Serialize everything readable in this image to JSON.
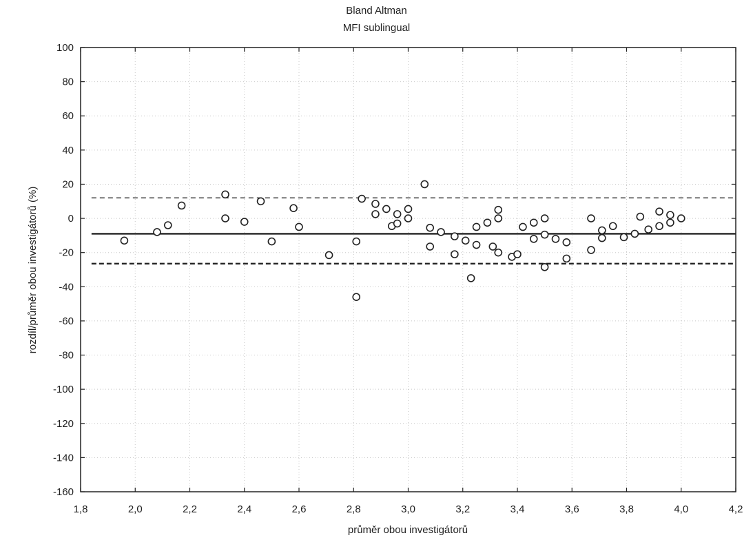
{
  "chart_data": {
    "type": "scatter",
    "title": "Bland Altman",
    "subtitle": "MFI sublingual",
    "xlabel": "průměr obou investigátorů",
    "ylabel": "rozdíl/průměr obou investigátorů (%)",
    "xlim": [
      1.8,
      4.2
    ],
    "ylim": [
      -160,
      100
    ],
    "xticks": [
      1.8,
      2.0,
      2.2,
      2.4,
      2.6,
      2.8,
      3.0,
      3.2,
      3.4,
      3.6,
      3.8,
      4.0,
      4.2
    ],
    "xtick_labels": [
      "1,8",
      "2,0",
      "2,2",
      "2,4",
      "2,6",
      "2,8",
      "3,0",
      "3,2",
      "3,4",
      "3,6",
      "3,8",
      "4,0",
      "4,2"
    ],
    "yticks": [
      -160,
      -140,
      -120,
      -100,
      -80,
      -60,
      -40,
      -20,
      0,
      20,
      40,
      60,
      80,
      100
    ],
    "ytick_labels": [
      "-160",
      "-140",
      "-120",
      "-100",
      "-80",
      "-60",
      "-40",
      "-20",
      "0",
      "20",
      "40",
      "60",
      "80",
      "100"
    ],
    "grid": true,
    "reference_lines": {
      "mean": -9,
      "upper_limit": 12,
      "lower_limit": -26.5
    },
    "series": [
      {
        "marker": "open-circle",
        "points": [
          [
            1.96,
            -13
          ],
          [
            2.08,
            -8
          ],
          [
            2.12,
            -4
          ],
          [
            2.17,
            7.5
          ],
          [
            2.33,
            14
          ],
          [
            2.33,
            0
          ],
          [
            2.4,
            -2
          ],
          [
            2.46,
            10
          ],
          [
            2.5,
            -13.5
          ],
          [
            2.58,
            6
          ],
          [
            2.6,
            -5
          ],
          [
            2.71,
            -21.5
          ],
          [
            2.81,
            -46
          ],
          [
            2.81,
            -13.5
          ],
          [
            2.83,
            11.5
          ],
          [
            2.88,
            8.5
          ],
          [
            2.88,
            2.5
          ],
          [
            2.92,
            5.5
          ],
          [
            2.94,
            -4.5
          ],
          [
            2.96,
            2.5
          ],
          [
            2.96,
            -3
          ],
          [
            3.0,
            5.5
          ],
          [
            3.0,
            0
          ],
          [
            3.06,
            20
          ],
          [
            3.08,
            -5.5
          ],
          [
            3.08,
            -16.5
          ],
          [
            3.12,
            -8
          ],
          [
            3.17,
            -10.5
          ],
          [
            3.17,
            -21
          ],
          [
            3.21,
            -13
          ],
          [
            3.23,
            -35
          ],
          [
            3.25,
            -5
          ],
          [
            3.25,
            -15.5
          ],
          [
            3.29,
            -2.5
          ],
          [
            3.31,
            -16.5
          ],
          [
            3.33,
            5
          ],
          [
            3.33,
            0
          ],
          [
            3.33,
            -20
          ],
          [
            3.38,
            -22.5
          ],
          [
            3.4,
            -21
          ],
          [
            3.42,
            -5
          ],
          [
            3.46,
            -2.5
          ],
          [
            3.46,
            -12
          ],
          [
            3.5,
            0
          ],
          [
            3.5,
            -9.5
          ],
          [
            3.5,
            -28.5
          ],
          [
            3.54,
            -12
          ],
          [
            3.58,
            -14
          ],
          [
            3.58,
            -23.5
          ],
          [
            3.67,
            0
          ],
          [
            3.67,
            -18.5
          ],
          [
            3.71,
            -7
          ],
          [
            3.71,
            -11.5
          ],
          [
            3.75,
            -4.5
          ],
          [
            3.79,
            -11
          ],
          [
            3.83,
            -9
          ],
          [
            3.85,
            1
          ],
          [
            3.88,
            -6.5
          ],
          [
            3.92,
            4
          ],
          [
            3.92,
            -4.5
          ],
          [
            3.96,
            2
          ],
          [
            3.96,
            -2.5
          ],
          [
            4.0,
            0
          ]
        ]
      }
    ]
  }
}
